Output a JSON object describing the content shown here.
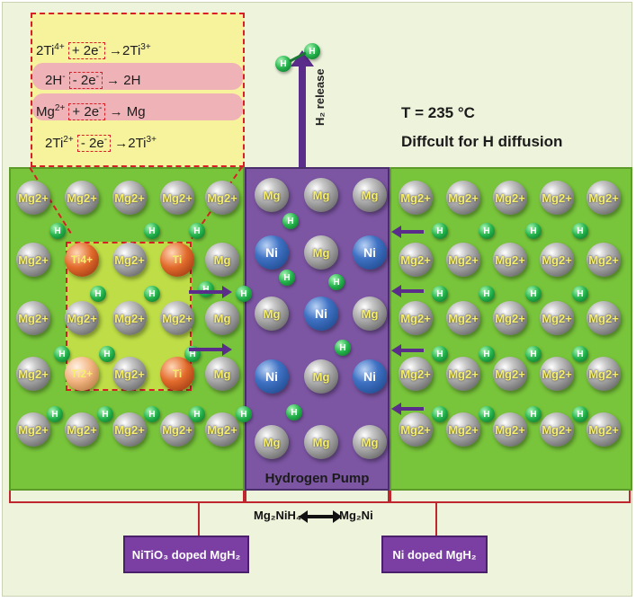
{
  "equations": [
    {
      "left": "2Ti",
      "left_sup": "4+",
      "op": "+ 2e",
      "op_sup": "-",
      "right": "2Ti",
      "right_sup": "3+"
    },
    {
      "left": "2H",
      "left_sup": "-",
      "op": "- 2e",
      "op_sup": "-",
      "right": "2H",
      "right_sup": ""
    },
    {
      "left": "Mg",
      "left_sup": "2+",
      "op": "+ 2e",
      "op_sup": "-",
      "right": "Mg",
      "right_sup": ""
    },
    {
      "left": "2Ti",
      "left_sup": "2+",
      "op": "- 2e",
      "op_sup": "-",
      "right": "2Ti",
      "right_sup": "3+"
    }
  ],
  "arrow_glyph": "→",
  "h2_release": "H₂ release",
  "condition": {
    "temperature": "T = 235 °C",
    "note": "Diffcult for H diffusion"
  },
  "pump_label": "Hydrogen Pump",
  "reaction": {
    "left": "Mg₂NiH₄",
    "right": "Mg₂Ni"
  },
  "labels": {
    "left": "NiTiO₃ doped MgH₂",
    "right": "Ni doped MgH₂"
  },
  "atoms": {
    "mg_ion": "Mg2+",
    "mg": "Mg",
    "ni": "Ni",
    "h": "H",
    "ti4": "Ti4+",
    "ti2": "Ti2+",
    "ti": "Ti"
  },
  "colors": {
    "matrix": "#78c43a",
    "pump": "#7c55a3",
    "inset": "#f7f29c",
    "dash": "#d81f26"
  }
}
